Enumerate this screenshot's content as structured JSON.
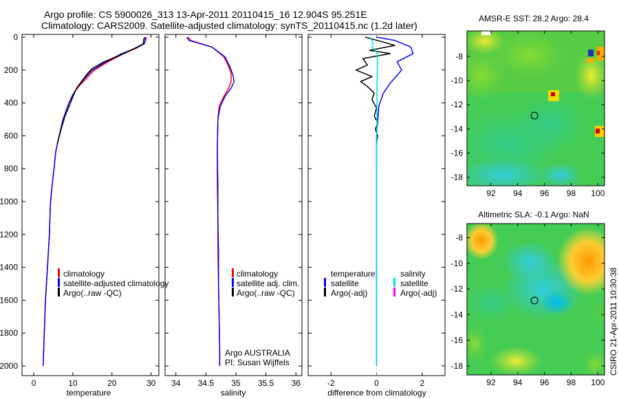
{
  "page": {
    "title_line1": "Argo profile: CS 5900026_313 13-Apr-2011 20110415_16 12.904S 95.251E",
    "title_line2": "Climatology: CARS2009. Satellite-adjusted climatology: synTS_20110415.nc (1.2d later)",
    "credit": "CSIRO 21-Apr-2011 10:30:38"
  },
  "chart_data": [
    {
      "type": "line",
      "xlabel": "temperature",
      "xticks": [
        "0",
        "10",
        "20",
        "30"
      ],
      "xlim": [
        -3,
        32
      ],
      "yticks": [
        "0",
        "200",
        "400",
        "600",
        "800",
        "1000",
        "1200",
        "1400",
        "1600",
        "1800",
        "2000"
      ],
      "ylim": [
        0,
        2050
      ],
      "legend": [
        "climatology",
        "satellite-adjusted climatology",
        "Argo(..raw -QC)"
      ],
      "colors": [
        "#ff0000",
        "#0000ff",
        "#000000"
      ],
      "series": [
        {
          "name": "climatology",
          "color": "#ff0000",
          "points": [
            [
              28.8,
              0
            ],
            [
              28.6,
              20
            ],
            [
              28.2,
              40
            ],
            [
              26,
              70
            ],
            [
              23,
              100
            ],
            [
              19,
              150
            ],
            [
              15.5,
              200
            ],
            [
              13.5,
              250
            ],
            [
              11.5,
              300
            ],
            [
              10,
              350
            ],
            [
              9,
              400
            ],
            [
              7.5,
              500
            ],
            [
              6.5,
              600
            ],
            [
              5.6,
              700
            ],
            [
              5.2,
              800
            ],
            [
              4.7,
              900
            ],
            [
              4.3,
              1000
            ],
            [
              4,
              1200
            ],
            [
              3.5,
              1400
            ],
            [
              3,
              1600
            ],
            [
              2.7,
              1800
            ],
            [
              2.4,
              2000
            ]
          ]
        },
        {
          "name": "satellite-adjusted climatology",
          "color": "#0000ff",
          "points": [
            [
              28.6,
              0
            ],
            [
              28.5,
              20
            ],
            [
              28.3,
              40
            ],
            [
              25.8,
              70
            ],
            [
              22.5,
              100
            ],
            [
              18.5,
              150
            ],
            [
              15,
              200
            ],
            [
              13,
              250
            ],
            [
              11.3,
              300
            ],
            [
              10,
              350
            ],
            [
              9,
              400
            ],
            [
              7.5,
              500
            ],
            [
              6.5,
              600
            ],
            [
              5.6,
              700
            ],
            [
              5.2,
              800
            ],
            [
              4.7,
              900
            ],
            [
              4.3,
              1000
            ],
            [
              4,
              1200
            ],
            [
              3.5,
              1400
            ],
            [
              3,
              1600
            ],
            [
              2.7,
              1800
            ],
            [
              2.4,
              2000
            ]
          ]
        },
        {
          "name": "Argo(..raw -QC)",
          "color": "#000000",
          "points": [
            [
              28.3,
              0
            ],
            [
              28.1,
              20
            ],
            [
              28,
              40
            ],
            [
              26.5,
              60
            ],
            [
              23,
              100
            ],
            [
              18,
              150
            ],
            [
              15,
              190
            ],
            [
              13.8,
              220
            ],
            [
              12.2,
              270
            ],
            [
              11,
              310
            ],
            [
              10.2,
              350
            ],
            [
              9.4,
              400
            ],
            [
              8,
              480
            ],
            [
              7,
              560
            ],
            [
              6,
              650
            ]
          ]
        }
      ]
    },
    {
      "type": "line",
      "xlabel": "salinity",
      "xticks": [
        "34",
        "34.5",
        "35",
        "35.5",
        "36"
      ],
      "xlim": [
        33.82,
        36.1
      ],
      "yticks": [],
      "ylim": [
        0,
        2050
      ],
      "legend": [
        "climatology",
        "satellite adj. clim.",
        "Argo(..raw -QC)"
      ],
      "colors": [
        "#ff0000",
        "#0000ff",
        "#000000"
      ],
      "annotation1": "Argo AUSTRALIA",
      "annotation2": "PI: Susan Wijffels",
      "series": [
        {
          "name": "climatology",
          "color": "#ff0000",
          "points": [
            [
              34.2,
              0
            ],
            [
              34.25,
              20
            ],
            [
              34.6,
              60
            ],
            [
              34.8,
              120
            ],
            [
              34.88,
              180
            ],
            [
              34.92,
              220
            ],
            [
              34.92,
              270
            ],
            [
              34.88,
              310
            ],
            [
              34.8,
              360
            ],
            [
              34.72,
              420
            ],
            [
              34.7,
              500
            ],
            [
              34.69,
              700
            ],
            [
              34.69,
              900
            ],
            [
              34.7,
              1100
            ],
            [
              34.7,
              1300
            ],
            [
              34.71,
              1500
            ],
            [
              34.72,
              1700
            ],
            [
              34.73,
              1900
            ],
            [
              34.73,
              2000
            ]
          ]
        },
        {
          "name": "satellite adj. clim.",
          "color": "#0000ff",
          "points": [
            [
              34.18,
              0
            ],
            [
              34.22,
              20
            ],
            [
              34.6,
              60
            ],
            [
              34.82,
              120
            ],
            [
              34.9,
              180
            ],
            [
              34.95,
              230
            ],
            [
              34.97,
              270
            ],
            [
              34.92,
              310
            ],
            [
              34.82,
              360
            ],
            [
              34.74,
              420
            ],
            [
              34.7,
              500
            ],
            [
              34.69,
              700
            ],
            [
              34.7,
              900
            ],
            [
              34.7,
              1100
            ],
            [
              34.71,
              1300
            ],
            [
              34.71,
              1500
            ],
            [
              34.72,
              1700
            ],
            [
              34.73,
              1900
            ],
            [
              34.73,
              2000
            ]
          ]
        },
        {
          "name": "Argo(..raw -QC)",
          "color": "#000000",
          "points": []
        }
      ]
    },
    {
      "type": "line",
      "xlabel": "difference from climatology",
      "xticks": [
        "-2",
        "0",
        "2"
      ],
      "xlim": [
        -3,
        3
      ],
      "yticks": [],
      "ylim": [
        0,
        2050
      ],
      "legend_left_header": "temperature",
      "legend_right_header": "salinity",
      "legend": [
        "satellite",
        "Argo(-adj)",
        "satellite",
        "Argo(-adj)"
      ],
      "colors": [
        "#0000ff",
        "#000000",
        "#00e5ee",
        "#ff00ff"
      ],
      "series": [
        {
          "name": "temperature satellite",
          "color": "#0000ff",
          "points": [
            [
              0,
              0
            ],
            [
              0.8,
              20
            ],
            [
              1.5,
              60
            ],
            [
              1.6,
              100
            ],
            [
              0.9,
              150
            ],
            [
              1.1,
              200
            ],
            [
              0.6,
              280
            ],
            [
              0.3,
              340
            ],
            [
              0.1,
              420
            ],
            [
              0,
              600
            ],
            [
              0,
              1000
            ],
            [
              0,
              1500
            ],
            [
              0,
              2000
            ]
          ]
        },
        {
          "name": "temperature Argo(-adj)",
          "color": "#000000",
          "points": [
            [
              -0.5,
              0
            ],
            [
              0.3,
              30
            ],
            [
              0.8,
              50
            ],
            [
              -0.3,
              80
            ],
            [
              0.6,
              100
            ],
            [
              -0.6,
              130
            ],
            [
              -0.4,
              170
            ],
            [
              -0.9,
              200
            ],
            [
              -0.2,
              240
            ],
            [
              -0.7,
              270
            ],
            [
              -0.4,
              300
            ],
            [
              -0.1,
              340
            ],
            [
              -0.2,
              380
            ],
            [
              0,
              430
            ],
            [
              -0.1,
              480
            ],
            [
              0.05,
              520
            ],
            [
              -0.05,
              560
            ],
            [
              0.05,
              600
            ],
            [
              0,
              650
            ]
          ]
        },
        {
          "name": "salinity satellite",
          "color": "#00e5ee",
          "points": [
            [
              -0.3,
              0
            ],
            [
              -0.15,
              30
            ],
            [
              -0.2,
              60
            ],
            [
              0.05,
              100
            ],
            [
              0.05,
              200
            ],
            [
              0.02,
              300
            ],
            [
              0.02,
              500
            ],
            [
              0,
              800
            ],
            [
              0,
              1200
            ],
            [
              0,
              1600
            ],
            [
              0,
              2000
            ]
          ]
        },
        {
          "name": "salinity Argo(-adj)",
          "color": "#ff00ff",
          "points": []
        }
      ]
    },
    {
      "type": "heatmap",
      "title": "AMSR-E SST: 28.2 Argo: 28.4",
      "xticks": [
        "92",
        "94",
        "96",
        "98",
        "100"
      ],
      "xlim": [
        90.2,
        100.5
      ],
      "yticks": [
        "-8",
        "-10",
        "-12",
        "-14",
        "-16",
        "-18"
      ],
      "ylim": [
        -18.7,
        -5.9
      ],
      "marker": [
        95.25,
        -12.9
      ]
    },
    {
      "type": "heatmap",
      "title": "Altimetric SLA: -0.1 Argo: NaN",
      "xticks": [
        "92",
        "94",
        "96",
        "98",
        "100"
      ],
      "xlim": [
        90.2,
        100.5
      ],
      "yticks": [
        "-8",
        "-10",
        "-12",
        "-14",
        "-16",
        "-18"
      ],
      "ylim": [
        -18.7,
        -6.9
      ],
      "marker": [
        95.25,
        -12.9
      ]
    }
  ]
}
